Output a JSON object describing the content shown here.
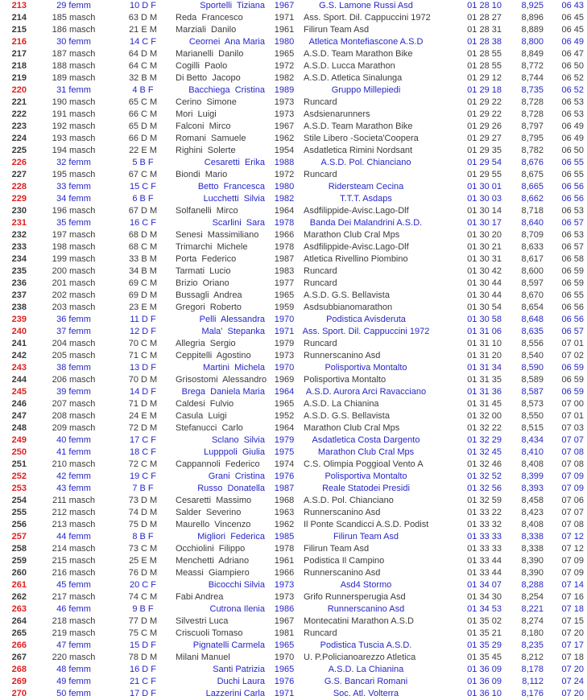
{
  "colors": {
    "position_red": "#e02020",
    "femm_blue": "#2626c8",
    "masch_dark": "#3a3a3a",
    "background": "#ffffff"
  },
  "table": {
    "fields": [
      "pos",
      "genderPos",
      "cat",
      "name",
      "year",
      "team",
      "time",
      "points",
      "pace",
      "rowType"
    ],
    "rows": [
      [
        "213",
        "29 femm",
        "10 D F",
        "Sportelli  Tiziana",
        "1967",
        "G.S. Lamone Russi Asd",
        "01 28 10",
        "8,925",
        "06 43",
        "f"
      ],
      [
        "214",
        "185 masch",
        "63 D M",
        "Reda  Francesco",
        "1971",
        "Ass. Sport. Dil. Cappuccini 1972",
        "01 28 27",
        "8,896",
        "06 45",
        "m"
      ],
      [
        "215",
        "186 masch",
        "21 E M",
        "Marziali  Danilo",
        "1961",
        "Filirun Team Asd",
        "01 28 31",
        "8,889",
        "06 45",
        "m"
      ],
      [
        "216",
        "30 femm",
        "14 C F",
        "Ceornei  Ana Maria",
        "1980",
        "Atletica Montefiascone A.S.D",
        "01 28 38",
        "8,800",
        "06 49",
        "f"
      ],
      [
        "217",
        "187 masch",
        "64 D M",
        "Marianelli  Danilo",
        "1965",
        "A.S.D. Team Marathon Bike",
        "01 28 55",
        "8,849",
        "06 47",
        "m"
      ],
      [
        "218",
        "188 masch",
        "64 C M",
        "Cogilli  Paolo",
        "1972",
        "A.S.D. Lucca Marathon",
        "01 28 55",
        "8,772",
        "06 50",
        "m"
      ],
      [
        "219",
        "189 masch",
        "32 B M",
        "Di Betto  Jacopo",
        "1982",
        "A.S.D. Atletica Sinalunga",
        "01 29 12",
        "8,744",
        "06 52",
        "m"
      ],
      [
        "220",
        "31 femm",
        "4 B F",
        "Bacchiega  Cristina",
        "1989",
        "Gruppo Millepiedi",
        "01 29 18",
        "8,735",
        "06 52",
        "f"
      ],
      [
        "221",
        "190 masch",
        "65 C M",
        "Cerino  Simone",
        "1973",
        "Runcard",
        "01 29 22",
        "8,728",
        "06 53",
        "m"
      ],
      [
        "222",
        "191 masch",
        "66 C M",
        "Mori  Luigi",
        "1973",
        "Asdsienarunners",
        "01 29 22",
        "8,728",
        "06 53",
        "m"
      ],
      [
        "223",
        "192 masch",
        "65 D M",
        "Falconi  Mirco",
        "1967",
        "A.S.D. Team Marathon Bike",
        "01 29 26",
        "8,797",
        "06 49",
        "m"
      ],
      [
        "224",
        "193 masch",
        "66 D M",
        "Romani  Samuele",
        "1962",
        "Stile Libero -Societa'Coopera",
        "01 29 27",
        "8,795",
        "06 49",
        "m"
      ],
      [
        "225",
        "194 masch",
        "22 E M",
        "Righini  Solerte",
        "1954",
        "Asdatletica Rimini Nordsant",
        "01 29 35",
        "8,782",
        "06 50",
        "m"
      ],
      [
        "226",
        "32 femm",
        "5 B F",
        "Cesaretti  Erika",
        "1988",
        "A.S.D. Pol. Chianciano",
        "01 29 54",
        "8,676",
        "06 55",
        "f"
      ],
      [
        "227",
        "195 masch",
        "67 C M",
        "Biondi  Mario",
        "1972",
        "Runcard",
        "01 29 55",
        "8,675",
        "06 55",
        "m"
      ],
      [
        "228",
        "33 femm",
        "15 C F",
        "Betto  Francesca",
        "1980",
        "Ridersteam Cecina",
        "01 30 01",
        "8,665",
        "06 56",
        "f"
      ],
      [
        "229",
        "34 femm",
        "6 B F",
        "Lucchetti  Silvia",
        "1982",
        "T.T.T. Asdaps",
        "01 30 03",
        "8,662",
        "06 56",
        "f"
      ],
      [
        "230",
        "196 masch",
        "67 D M",
        "Solfanelli  Mirco",
        "1964",
        "Asdfilippide-Avisc.Lago-Dlf",
        "01 30 14",
        "8,718",
        "06 53",
        "m"
      ],
      [
        "231",
        "35 femm",
        "16 C F",
        "Scarlini  Sara",
        "1978",
        "Banda Dei Malandrini A.S.D.",
        "01 30 17",
        "8,640",
        "06 57",
        "f"
      ],
      [
        "232",
        "197 masch",
        "68 D M",
        "Senesi  Massimiliano",
        "1966",
        "Marathon Club Cral Mps",
        "01 30 20",
        "8,709",
        "06 53",
        "m"
      ],
      [
        "233",
        "198 masch",
        "68 C M",
        "Trimarchi  Michele",
        "1978",
        "Asdfilippide-Avisc.Lago-Dlf",
        "01 30 21",
        "8,633",
        "06 57",
        "m"
      ],
      [
        "234",
        "199 masch",
        "33 B M",
        "Porta  Federico",
        "1987",
        "Atletica Rivellino Piombino",
        "01 30 31",
        "8,617",
        "06 58",
        "m"
      ],
      [
        "235",
        "200 masch",
        "34 B M",
        "Tarmati  Lucio",
        "1983",
        "Runcard",
        "01 30 42",
        "8,600",
        "06 59",
        "m"
      ],
      [
        "236",
        "201 masch",
        "69 C M",
        "Brizio  Oriano",
        "1977",
        "Runcard",
        "01 30 44",
        "8,597",
        "06 59",
        "m"
      ],
      [
        "237",
        "202 masch",
        "69 D M",
        "Bussagli  Andrea",
        "1965",
        "A.S.D. G.S. Bellavista",
        "01 30 44",
        "8,670",
        "06 55",
        "m"
      ],
      [
        "238",
        "203 masch",
        "23 E M",
        "Gregori  Roberto",
        "1959",
        "Asdsubbianomarathon",
        "01 30 54",
        "8,654",
        "06 56",
        "m"
      ],
      [
        "239",
        "36 femm",
        "11 D F",
        "Pelli  Alessandra",
        "1970",
        "Podistica Avisderuta",
        "01 30 58",
        "8,648",
        "06 56",
        "f"
      ],
      [
        "240",
        "37 femm",
        "12 D F",
        "Mala'  Stepanka",
        "1971",
        "Ass. Sport. Dil. Cappuccini 1972",
        "01 31 06",
        "8,635",
        "06 57",
        "f"
      ],
      [
        "241",
        "204 masch",
        "70 C M",
        "Allegria  Sergio",
        "1979",
        "Runcard",
        "01 31 10",
        "8,556",
        "07 01",
        "m"
      ],
      [
        "242",
        "205 masch",
        "71 C M",
        "Ceppitelli  Agostino",
        "1973",
        "Runnerscanino Asd",
        "01 31 20",
        "8,540",
        "07 02",
        "m"
      ],
      [
        "243",
        "38 femm",
        "13 D F",
        "Martini  Michela",
        "1970",
        "Polisportiva Montalto",
        "01 31 34",
        "8,590",
        "06 59",
        "f"
      ],
      [
        "244",
        "206 masch",
        "70 D M",
        "Grisostomi  Alessandro",
        "1969",
        "Polisportiva Montalto",
        "01 31 35",
        "8,589",
        "06 59",
        "m"
      ],
      [
        "245",
        "39 femm",
        "14 D F",
        "Brega  Daniela Maria",
        "1964",
        "A.S.D. Aurora Arci Ravacciano",
        "01 31 36",
        "8,587",
        "06 59",
        "f"
      ],
      [
        "246",
        "207 masch",
        "71 D M",
        "Caldesi  Fulvio",
        "1965",
        "A.S.D. La Chianina",
        "01 31 45",
        "8,573",
        "07 00",
        "m"
      ],
      [
        "247",
        "208 masch",
        "24 E M",
        "Casula  Luigi",
        "1952",
        "A.S.D. G.S. Bellavista",
        "01 32 00",
        "8,550",
        "07 01",
        "m"
      ],
      [
        "248",
        "209 masch",
        "72 D M",
        "Stefanucci  Carlo",
        "1964",
        "Marathon Club Cral Mps",
        "01 32 22",
        "8,515",
        "07 03",
        "m"
      ],
      [
        "249",
        "40 femm",
        "17 C F",
        "Sclano  Silvia",
        "1979",
        "Asdatletica Costa Dargento",
        "01 32 29",
        "8,434",
        "07 07",
        "f"
      ],
      [
        "250",
        "41 femm",
        "18 C F",
        "Lupppoli  Giulia",
        "1975",
        "Marathon Club Cral Mps",
        "01 32 45",
        "8,410",
        "07 08",
        "f"
      ],
      [
        "251",
        "210 masch",
        "72 C M",
        "Cappannoli  Federico",
        "1974",
        "C.S. Olimpia Poggioal Vento A",
        "01 32 46",
        "8,408",
        "07 08",
        "m"
      ],
      [
        "252",
        "42 femm",
        "19 C F",
        "Grani  Cristina",
        "1976",
        "Polisportiva Montalto",
        "01 32 52",
        "8,399",
        "07 09",
        "f"
      ],
      [
        "253",
        "43 femm",
        "7 B F",
        "Russo  Donatella",
        "1987",
        "Reale Statodei Presidi",
        "01 32 56",
        "8,393",
        "07 09",
        "f"
      ],
      [
        "254",
        "211 masch",
        "73 D M",
        "Cesaretti  Massimo",
        "1968",
        "A.S.D. Pol. Chianciano",
        "01 32 59",
        "8,458",
        "07 06",
        "m"
      ],
      [
        "255",
        "212 masch",
        "74 D M",
        "Salder  Severino",
        "1963",
        "Runnerscanino Asd",
        "01 33 22",
        "8,423",
        "07 07",
        "m"
      ],
      [
        "256",
        "213 masch",
        "75 D M",
        "Maurello  Vincenzo",
        "1962",
        "Il Ponte Scandicci A.S.D. Podist",
        "01 33 32",
        "8,408",
        "07 08",
        "m"
      ],
      [
        "257",
        "44 femm",
        "8 B F",
        "Migliori  Federica",
        "1985",
        "Filirun Team Asd",
        "01 33 33",
        "8,338",
        "07 12",
        "f"
      ],
      [
        "258",
        "214 masch",
        "73 C M",
        "Occhiolini  Filippo",
        "1978",
        "Filirun Team Asd",
        "01 33 33",
        "8,338",
        "07 12",
        "m"
      ],
      [
        "259",
        "215 masch",
        "25 E M",
        "Menchetti  Adriano",
        "1961",
        "Podistica Il Campino",
        "01 33 44",
        "8,390",
        "07 09",
        "m"
      ],
      [
        "260",
        "216 masch",
        "76 D M",
        "Meassi  Giampiero",
        "1966",
        "Runnerscanino Asd",
        "01 33 44",
        "8,390",
        "07 09",
        "m"
      ],
      [
        "261",
        "45 femm",
        "20 C F",
        "Bicocchi Silvia",
        "1973",
        "Asd4 Stormo",
        "01 34 07",
        "8,288",
        "07 14",
        "f"
      ],
      [
        "262",
        "217 masch",
        "74 C M",
        "Fabi Andrea",
        "1973",
        "Grifo Runnersperugia Asd",
        "01 34 30",
        "8,254",
        "07 16",
        "m"
      ],
      [
        "263",
        "46 femm",
        "9 B F",
        "Cutrona Ilenia",
        "1986",
        "Runnerscanino Asd",
        "01 34 53",
        "8,221",
        "07 18",
        "f"
      ],
      [
        "264",
        "218 masch",
        "77 D M",
        "Silvestri Luca",
        "1967",
        "Montecatini Marathon A.S.D",
        "01 35 02",
        "8,274",
        "07 15",
        "m"
      ],
      [
        "265",
        "219 masch",
        "75 C M",
        "Criscuoli Tomaso",
        "1981",
        "Runcard",
        "01 35 21",
        "8,180",
        "07 20",
        "m"
      ],
      [
        "266",
        "47 femm",
        "15 D F",
        "Pignatelli Carmela",
        "1965",
        "Podistica Tuscia A.S.D.",
        "01 35 29",
        "8,235",
        "07 17",
        "f"
      ],
      [
        "267",
        "220 masch",
        "78 D M",
        "Milani Manuel",
        "1970",
        "U. P.Policianoarezzo Atletica",
        "01 35 45",
        "8,212",
        "07 18",
        "m"
      ],
      [
        "268",
        "48 femm",
        "16 D F",
        "Santi Patrizia",
        "1965",
        "A.S.D. La Chianina",
        "01 36 09",
        "8,178",
        "07 20",
        "f"
      ],
      [
        "269",
        "49 femm",
        "21 C F",
        "Duchi Laura",
        "1976",
        "G.S. Bancari Romani",
        "01 36 09",
        "8,112",
        "07 24",
        "f"
      ],
      [
        "270",
        "50 femm",
        "17 D F",
        "Lazzerini Carla",
        "1971",
        "Soc. Atl. Volterra",
        "01 36 10",
        "8,176",
        "07 20",
        "f"
      ]
    ]
  }
}
